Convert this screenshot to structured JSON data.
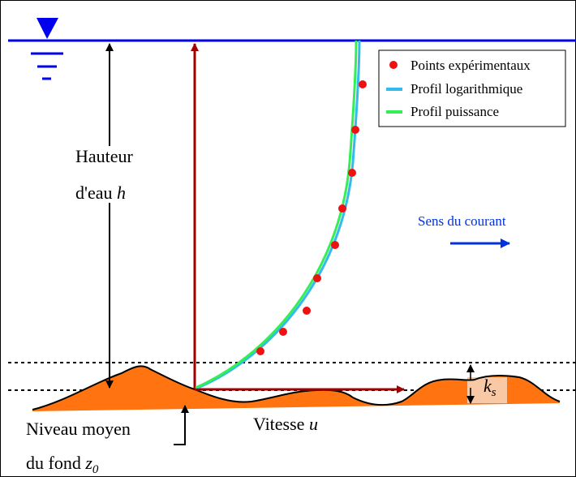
{
  "legend": {
    "items": [
      "Points expérimentaux",
      "Profil logarithmique",
      "Profil puissance"
    ]
  },
  "height_label": {
    "line1": "Hauteur",
    "line2": "d'eau",
    "symbol": "h"
  },
  "current_label": "Sens du courant",
  "velocity_label": {
    "text": "Vitesse",
    "symbol": "u"
  },
  "bed_label": {
    "line1": "Niveau moyen",
    "line2": "du fond",
    "symbol": "z",
    "subscript": "0"
  },
  "roughness_label": {
    "symbol": "k",
    "subscript": "s"
  }
}
